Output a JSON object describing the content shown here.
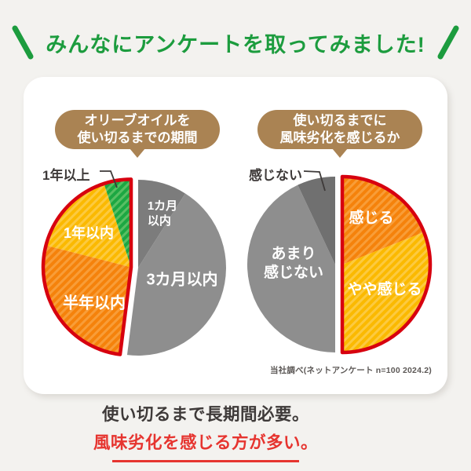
{
  "title": {
    "text": "みんなにアンケートを取ってみました!",
    "color": "#1c9c3e"
  },
  "chart_data": [
    {
      "type": "pie",
      "title": "オリーブオイルを使い切るまでの期間",
      "title_lines": [
        "オリーブオイルを",
        "使い切るまでの期間"
      ],
      "legend_position": "labels-on-slices",
      "highlight_outline_color": "#d7000f",
      "segments": [
        {
          "label": "1カ月以内",
          "label_lines": [
            "1カ月",
            "以内"
          ],
          "value": 9,
          "color": "#7c7c7c",
          "striped": false,
          "highlighted": false
        },
        {
          "label": "3カ月以内",
          "value": 43,
          "color": "#8e8e8e",
          "striped": false,
          "highlighted": false
        },
        {
          "label": "半年以内",
          "value": 27,
          "color": "#f5820b",
          "stripe_color": "#f89d38",
          "striped": true,
          "highlighted": true
        },
        {
          "label": "1年以内",
          "value": 16,
          "color": "#fbb900",
          "stripe_color": "#fcca40",
          "striped": true,
          "highlighted": true
        },
        {
          "label": "1年以上",
          "value": 5,
          "color": "#1ca742",
          "stripe_color": "#58bf63",
          "striped": true,
          "highlighted": true,
          "label_outside": true
        }
      ]
    },
    {
      "type": "pie",
      "title": "使い切るまでに風味劣化を感じるか",
      "title_lines": [
        "使い切るまでに",
        "風味劣化を感じるか"
      ],
      "legend_position": "labels-on-slices",
      "highlight_outline_color": "#d7000f",
      "segments": [
        {
          "label": "感じる",
          "value": 19,
          "color": "#f5820b",
          "stripe_color": "#f89d38",
          "striped": true,
          "highlighted": true
        },
        {
          "label": "やや感じる",
          "value": 31,
          "color": "#fbb900",
          "stripe_color": "#fcca40",
          "striped": true,
          "highlighted": true
        },
        {
          "label": "あまり感じない",
          "label_lines": [
            "あまり",
            "感じない"
          ],
          "value": 43,
          "color": "#8e8e8e",
          "striped": false,
          "highlighted": false
        },
        {
          "label": "感じない",
          "value": 7,
          "color": "#707070",
          "striped": false,
          "highlighted": false,
          "label_outside": true
        }
      ]
    }
  ],
  "source_note": "当社調べ(ネットアンケート n=100 2024.2)",
  "conclusion": {
    "line1": "使い切るまで長期間必要。",
    "line2": "風味劣化を感じる方が多い。",
    "accent_color": "#e6342f"
  }
}
